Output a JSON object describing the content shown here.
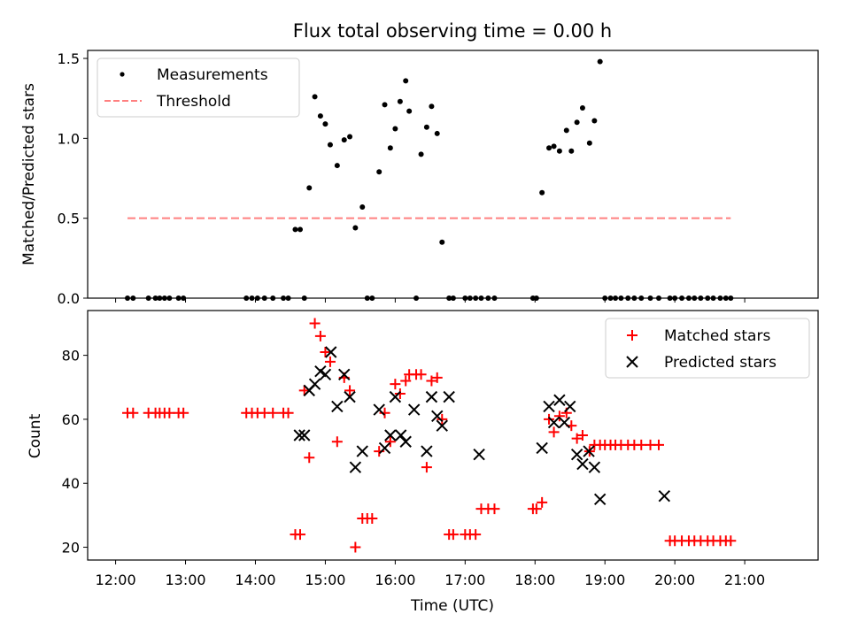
{
  "chart_data": [
    {
      "type": "scatter",
      "title": "Flux total observing time = 0.00 h",
      "xlabel": "",
      "ylabel": "Matched/Predicted stars",
      "xlim": [
        11.6,
        22.05
      ],
      "ylim": [
        0,
        1.55
      ],
      "yticks": [
        0.0,
        0.5,
        1.0,
        1.5
      ],
      "ytick_labels": [
        "0.0",
        "0.5",
        "1.0",
        "1.5"
      ],
      "xticks": [
        12,
        13,
        14,
        15,
        16,
        17,
        18,
        19,
        20,
        21
      ],
      "legend_position": "upper-left",
      "series": [
        {
          "name": "Measurements",
          "kind": "points",
          "color": "#000000",
          "x": [
            12.17,
            12.25,
            12.47,
            12.57,
            12.63,
            12.7,
            12.77,
            12.9,
            12.97,
            13.87,
            13.95,
            14.03,
            14.13,
            14.25,
            14.4,
            14.47,
            14.57,
            14.64,
            14.7,
            14.77,
            14.85,
            14.93,
            15.0,
            15.07,
            15.17,
            15.27,
            15.35,
            15.43,
            15.53,
            15.6,
            15.67,
            15.77,
            15.85,
            15.93,
            16.0,
            16.07,
            16.15,
            16.2,
            16.3,
            16.37,
            16.45,
            16.52,
            16.6,
            16.67,
            16.77,
            16.83,
            17.0,
            17.07,
            17.15,
            17.23,
            17.33,
            17.42,
            17.97,
            18.02,
            18.1,
            18.2,
            18.27,
            18.35,
            18.45,
            18.52,
            18.6,
            18.68,
            18.78,
            18.85,
            18.93,
            19.0,
            19.08,
            19.15,
            19.23,
            19.33,
            19.42,
            19.52,
            19.65,
            19.77,
            19.93,
            20.0,
            20.1,
            20.2,
            20.28,
            20.37,
            20.47,
            20.55,
            20.65,
            20.73,
            20.8
          ],
          "y": [
            0,
            0,
            0,
            0,
            0,
            0,
            0,
            0,
            0,
            0,
            0,
            0,
            0,
            0,
            0,
            0,
            0.43,
            0.43,
            0,
            0.69,
            1.26,
            1.14,
            1.09,
            0.96,
            0.83,
            0.99,
            1.01,
            0.44,
            0.57,
            0,
            0,
            0.79,
            1.21,
            0.94,
            1.06,
            1.23,
            1.36,
            1.17,
            0,
            0.9,
            1.07,
            1.2,
            1.03,
            0.35,
            0,
            0,
            0,
            0,
            0,
            0,
            0,
            0,
            0,
            0,
            0.66,
            0.94,
            0.95,
            0.92,
            1.05,
            0.92,
            1.1,
            1.19,
            0.97,
            1.11,
            1.48,
            0,
            0,
            0,
            0,
            0,
            0,
            0,
            0,
            0,
            0,
            0,
            0,
            0,
            0,
            0,
            0,
            0,
            0,
            0,
            0
          ]
        },
        {
          "name": "Threshold",
          "kind": "dashed-line",
          "color": "#ff8080",
          "x": [
            12.17,
            20.8
          ],
          "y": [
            0.5,
            0.5
          ]
        }
      ]
    },
    {
      "type": "scatter",
      "title": "",
      "xlabel": "Time (UTC)",
      "ylabel": "Count",
      "xlim": [
        11.6,
        22.05
      ],
      "ylim": [
        16,
        94
      ],
      "yticks": [
        20,
        40,
        60,
        80
      ],
      "ytick_labels": [
        "20",
        "40",
        "60",
        "80"
      ],
      "xticks": [
        12,
        13,
        14,
        15,
        16,
        17,
        18,
        19,
        20,
        21
      ],
      "xtick_labels": [
        "12:00",
        "13:00",
        "14:00",
        "15:00",
        "16:00",
        "17:00",
        "18:00",
        "19:00",
        "20:00",
        "21:00"
      ],
      "legend_position": "upper-right",
      "series": [
        {
          "name": "Matched stars",
          "kind": "plus",
          "color": "#ff0000",
          "x": [
            12.17,
            12.25,
            12.47,
            12.57,
            12.63,
            12.7,
            12.77,
            12.9,
            12.97,
            13.87,
            13.95,
            14.03,
            14.13,
            14.25,
            14.4,
            14.47,
            14.57,
            14.64,
            14.7,
            14.77,
            14.85,
            14.93,
            15.0,
            15.07,
            15.17,
            15.27,
            15.35,
            15.43,
            15.53,
            15.6,
            15.67,
            15.77,
            15.85,
            15.93,
            16.0,
            16.07,
            16.15,
            16.2,
            16.3,
            16.37,
            16.45,
            16.52,
            16.6,
            16.67,
            16.77,
            16.83,
            17.0,
            17.07,
            17.15,
            17.23,
            17.33,
            17.42,
            17.97,
            18.02,
            18.1,
            18.2,
            18.27,
            18.35,
            18.45,
            18.52,
            18.6,
            18.68,
            18.78,
            18.85,
            18.93,
            19.0,
            19.08,
            19.15,
            19.23,
            19.33,
            19.42,
            19.52,
            19.65,
            19.77,
            19.93,
            20.0,
            20.1,
            20.2,
            20.28,
            20.37,
            20.47,
            20.55,
            20.65,
            20.73,
            20.8
          ],
          "y": [
            62,
            62,
            62,
            62,
            62,
            62,
            62,
            62,
            62,
            62,
            62,
            62,
            62,
            62,
            62,
            62,
            24,
            24,
            69,
            48,
            90,
            86,
            81,
            78,
            53,
            73,
            69,
            20,
            29,
            29,
            29,
            50,
            62,
            53,
            71,
            68,
            72,
            74,
            74,
            74,
            45,
            72,
            73,
            60,
            24,
            24,
            24,
            24,
            24,
            32,
            32,
            32,
            32,
            32,
            34,
            60,
            56,
            61,
            62,
            58,
            54,
            55,
            50,
            52,
            52,
            52,
            52,
            52,
            52,
            52,
            52,
            52,
            52,
            52,
            22,
            22,
            22,
            22,
            22,
            22,
            22,
            22,
            22,
            22,
            22
          ]
        },
        {
          "name": "Predicted stars",
          "kind": "x",
          "color": "#000000",
          "x": [
            14.63,
            14.7,
            14.77,
            14.85,
            14.93,
            15.0,
            15.08,
            15.17,
            15.27,
            15.35,
            15.43,
            15.53,
            15.77,
            15.85,
            15.93,
            16.0,
            16.08,
            16.15,
            16.27,
            16.45,
            16.52,
            16.6,
            16.67,
            16.77,
            17.2,
            18.1,
            18.2,
            18.27,
            18.35,
            18.42,
            18.5,
            18.6,
            18.68,
            18.77,
            18.85,
            18.93,
            19.85
          ],
          "y": [
            55,
            55,
            69,
            71,
            75,
            74,
            81,
            64,
            74,
            67,
            45,
            50,
            63,
            51,
            55,
            67,
            55,
            53,
            63,
            50,
            67,
            61,
            58,
            67,
            49,
            51,
            64,
            59,
            66,
            59,
            64,
            49,
            46,
            50,
            45,
            35,
            36
          ]
        }
      ]
    }
  ],
  "colors": {
    "matched": "#ff0000",
    "predicted": "#000000",
    "threshold": "#ff8080"
  }
}
